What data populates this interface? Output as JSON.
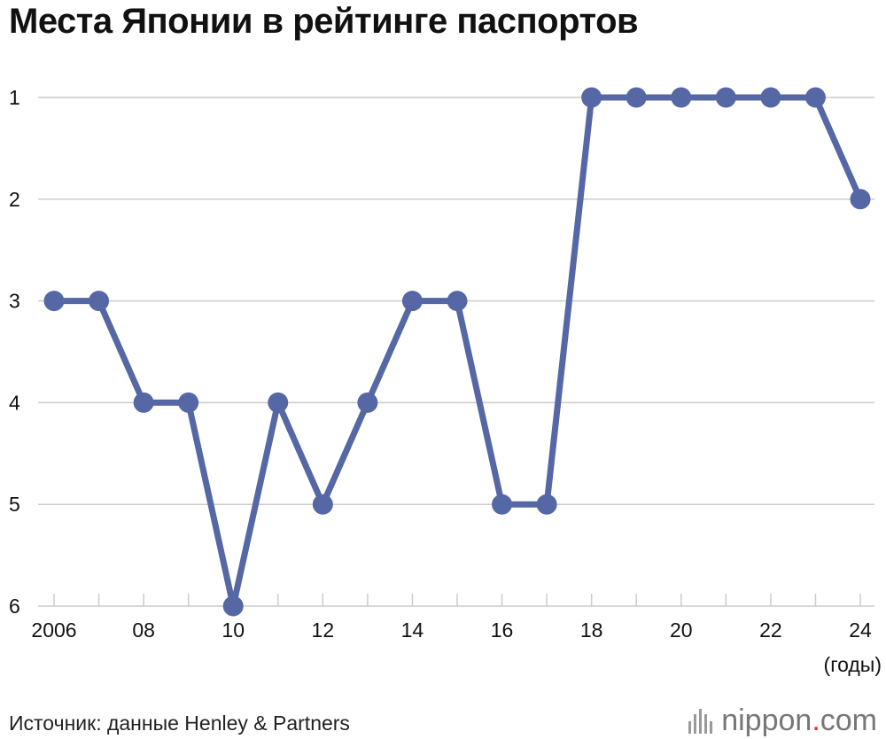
{
  "chart_data": {
    "type": "line",
    "title": "Места Японии в рейтинге паспортов",
    "xlabel": "(годы)",
    "ylabel": "",
    "x": [
      2006,
      2007,
      2008,
      2009,
      2010,
      2011,
      2012,
      2013,
      2014,
      2015,
      2016,
      2017,
      2018,
      2019,
      2020,
      2021,
      2022,
      2023,
      2024
    ],
    "x_tick_labels": {
      "2006": "2006",
      "2008": "08",
      "2010": "10",
      "2012": "12",
      "2014": "14",
      "2016": "16",
      "2018": "18",
      "2020": "20",
      "2022": "22",
      "2024": "24"
    },
    "series": [
      {
        "values": [
          3,
          3,
          4,
          4,
          6,
          4,
          5,
          4,
          3,
          3,
          5,
          5,
          1,
          1,
          1,
          1,
          1,
          1,
          2
        ]
      }
    ],
    "y_ticks": [
      1,
      2,
      3,
      4,
      5,
      6
    ],
    "ylim": [
      1,
      6
    ],
    "y_inverted": true,
    "grid": true,
    "line_color": "#5567a5"
  },
  "footer": {
    "source": "Источник: данные Henley & Partners",
    "logo_name": "nippon",
    "logo_dot": ".",
    "logo_tld": "com"
  }
}
